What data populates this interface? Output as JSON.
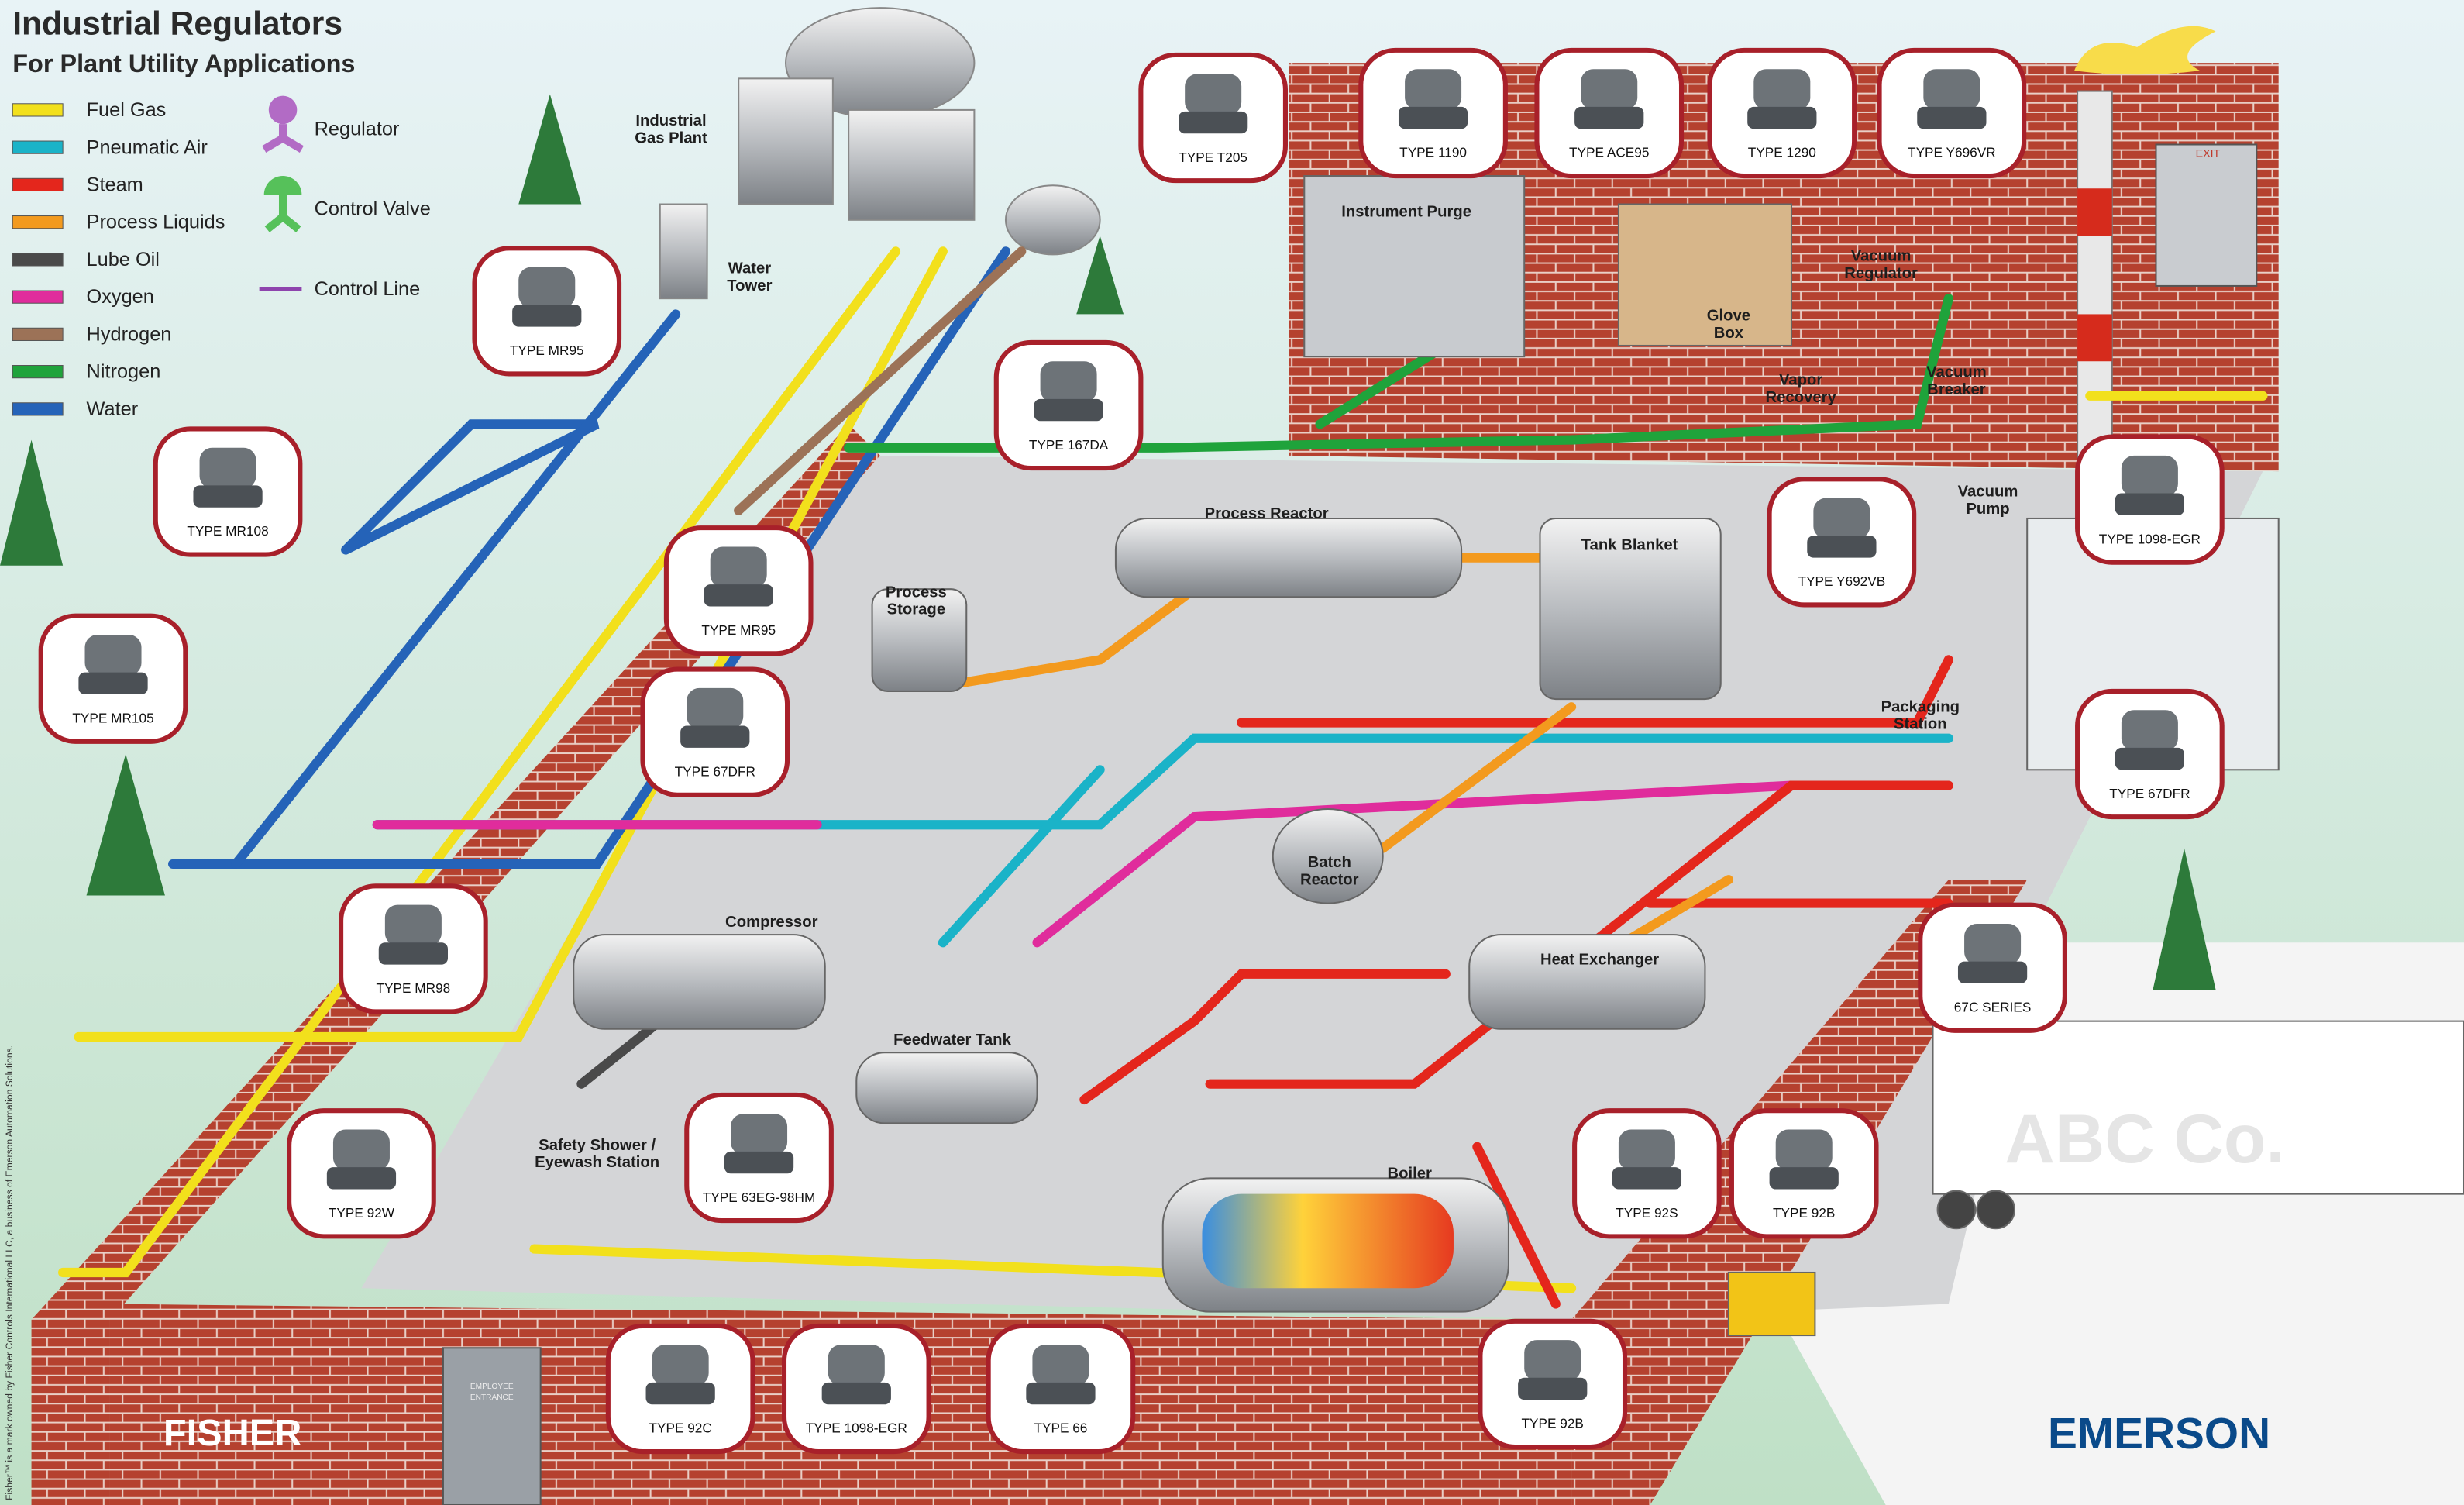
{
  "header": {
    "title": "Industrial Regulators",
    "subtitle": "For Plant Utility Applications"
  },
  "legend": {
    "lines": [
      {
        "label": "Fuel Gas",
        "color": "#f2e01c"
      },
      {
        "label": "Pneumatic Air",
        "color": "#1ab3c8"
      },
      {
        "label": "Steam",
        "color": "#e4261c"
      },
      {
        "label": "Process Liquids",
        "color": "#f39a1e"
      },
      {
        "label": "Lube Oil",
        "color": "#4a4a4a"
      },
      {
        "label": "Oxygen",
        "color": "#e02c9c"
      },
      {
        "label": "Hydrogen",
        "color": "#9c7257"
      },
      {
        "label": "Nitrogen",
        "color": "#1fa33b"
      },
      {
        "label": "Water",
        "color": "#2563b8"
      }
    ],
    "symbols": [
      "Regulator",
      "Control Valve",
      "Control Line"
    ]
  },
  "callouts": [
    "TYPE T205",
    "TYPE 1190",
    "TYPE ACE95",
    "TYPE 1290",
    "TYPE Y696VR",
    "TYPE MR95",
    "TYPE 167DA",
    "TYPE MR108",
    "TYPE Y692VB",
    "TYPE 1098-EGR",
    "TYPE MR95",
    "TYPE MR105",
    "TYPE 67DFR",
    "TYPE 67DFR",
    "67C SERIES",
    "TYPE MR98",
    "TYPE 92W",
    "TYPE 63EG-98HM",
    "TYPE 92S",
    "TYPE 92B",
    "TYPE 92C",
    "TYPE 1098-EGR",
    "TYPE 66",
    "TYPE 92B"
  ],
  "areas": [
    [
      "Industrial",
      "Gas Plant"
    ],
    [
      "Water",
      "Tower"
    ],
    [
      "Instrument Purge"
    ],
    [
      "Glove",
      "Box"
    ],
    [
      "Vacuum",
      "Regulator"
    ],
    [
      "Vapor",
      "Recovery"
    ],
    [
      "Vacuum",
      "Breaker"
    ],
    [
      "Vacuum",
      "Pump"
    ],
    [
      "Process Reactor"
    ],
    [
      "Tank Blanket"
    ],
    [
      "Process",
      "Storage"
    ],
    [
      "Packaging",
      "Station"
    ],
    [
      "Batch",
      "Reactor"
    ],
    [
      "Compressor"
    ],
    [
      "Heat Exchanger"
    ],
    [
      "Feedwater Tank"
    ],
    [
      "Safety Shower /",
      "Eyewash Station"
    ],
    [
      "Boiler"
    ]
  ],
  "signs": {
    "exit": "EXIT",
    "entrance": [
      "EMPLOYEE",
      "ENTRANCE"
    ],
    "trailer": "ABC Co."
  },
  "brands": {
    "left": "FISHER",
    "right": "EMERSON"
  },
  "footnote": "Fisher™ is a mark owned by Fisher Controls International LLC, a business of Emerson Automation Solutions."
}
